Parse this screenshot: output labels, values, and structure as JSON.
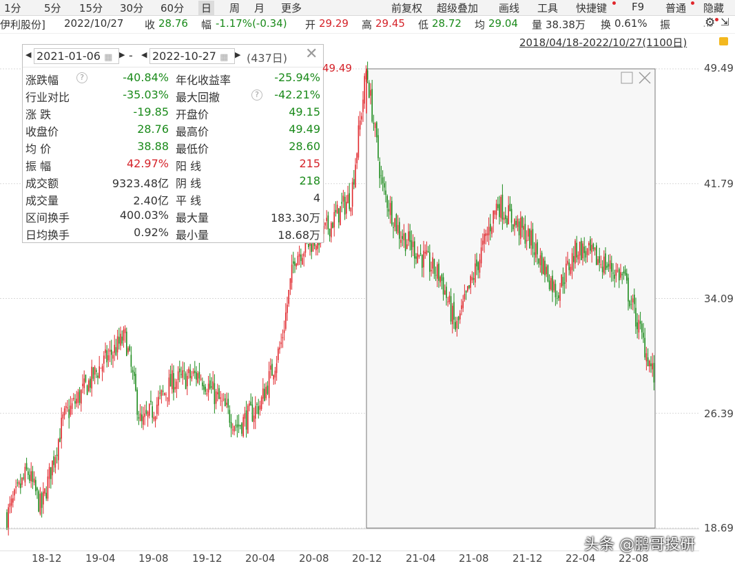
{
  "toolbar": {
    "periods": [
      "1分",
      "5分",
      "15分",
      "30分",
      "60分",
      "日",
      "周",
      "月",
      "更多"
    ],
    "active_period": "日",
    "tools": [
      "前复权",
      "超级叠加",
      "画线",
      "工具",
      "快捷键",
      "F9",
      "普通",
      "隐藏"
    ]
  },
  "quote": {
    "name": "伊利股份]",
    "date": "2022/10/27",
    "close_label": "收",
    "close": "28.76",
    "change_label": "幅",
    "change": "-1.17%(-0.34)",
    "open_label": "开",
    "open": "29.29",
    "high_label": "高",
    "high": "29.45",
    "low_label": "低",
    "low": "28.72",
    "avg_label": "均",
    "avg": "29.04",
    "vol_label": "量",
    "vol": "38.38万",
    "turnover_label": "换",
    "turnover": "0.61%",
    "amp_label": "振"
  },
  "range_link": "2018/04/18-2022/10/27(1100日)",
  "stats_panel": {
    "start_date": "2021-01-06",
    "end_date": "2022-10-27",
    "dash": "-",
    "days": "(437日)",
    "rows": [
      {
        "l1": "涨跌幅",
        "v1": "-40.84%",
        "c1": "g",
        "l2": "年化收益率",
        "v2": "-25.94%",
        "c2": "g"
      },
      {
        "l1": "行业对比",
        "v1": "-35.03%",
        "c1": "g",
        "l2": "最大回撤",
        "v2": "-42.21%",
        "c2": "g"
      },
      {
        "l1": "涨  跌",
        "v1": "-19.85",
        "c1": "g",
        "l2": "开盘价",
        "v2": "49.15",
        "c2": "g"
      },
      {
        "l1": "收盘价",
        "v1": "28.76",
        "c1": "g",
        "l2": "最高价",
        "v2": "49.49",
        "c2": "g"
      },
      {
        "l1": "均  价",
        "v1": "38.88",
        "c1": "g",
        "l2": "最低价",
        "v2": "28.60",
        "c2": "g"
      },
      {
        "l1": "振  幅",
        "v1": "42.97%",
        "c1": "r",
        "l2": "阳  线",
        "v2": "215",
        "c2": "r"
      },
      {
        "l1": "成交额",
        "v1": "9323.48亿",
        "c1": "k",
        "l2": "阴  线",
        "v2": "218",
        "c2": "g"
      },
      {
        "l1": "成交量",
        "v1": "2.40亿",
        "c1": "k",
        "l2": "平  线",
        "v2": "4",
        "c2": "k"
      },
      {
        "l1": "区间换手",
        "v1": "400.03%",
        "c1": "k",
        "l2": "最大量",
        "v2": "183.30万",
        "c2": "k"
      },
      {
        "l1": "日均换手",
        "v1": "0.92%",
        "c1": "k",
        "l2": "最小量",
        "v2": "18.68万",
        "c2": "k"
      }
    ]
  },
  "chart_data": {
    "type": "candlestick",
    "y_ticks": [
      "49.49",
      "41.79",
      "34.09",
      "26.39",
      "18.69"
    ],
    "ylim": [
      18.69,
      49.49
    ],
    "x_ticks": [
      "18-12",
      "19-04",
      "19-08",
      "19-12",
      "20-04",
      "20-08",
      "20-12",
      "21-04",
      "21-08",
      "21-12",
      "22-04",
      "22-08"
    ],
    "peak_label": "49.49",
    "series_close_key_points": [
      {
        "date": "2018-08",
        "close": 19.5
      },
      {
        "date": "2018-10",
        "close": 22.5
      },
      {
        "date": "2018-12",
        "close": 20.0
      },
      {
        "date": "2019-02",
        "close": 26.0
      },
      {
        "date": "2019-04",
        "close": 29.5
      },
      {
        "date": "2019-06",
        "close": 31.5
      },
      {
        "date": "2019-08",
        "close": 25.5
      },
      {
        "date": "2019-10",
        "close": 28.5
      },
      {
        "date": "2019-12",
        "close": 29.0
      },
      {
        "date": "2020-03",
        "close": 25.5
      },
      {
        "date": "2020-05",
        "close": 27.0
      },
      {
        "date": "2020-06",
        "close": 31.0
      },
      {
        "date": "2020-08",
        "close": 37.0
      },
      {
        "date": "2020-10",
        "close": 38.5
      },
      {
        "date": "2020-12",
        "close": 41.0
      },
      {
        "date": "2021-01",
        "close": 49.49
      },
      {
        "date": "2021-03",
        "close": 41.5
      },
      {
        "date": "2021-05",
        "close": 38.5
      },
      {
        "date": "2021-07",
        "close": 35.5
      },
      {
        "date": "2021-08",
        "close": 32.0
      },
      {
        "date": "2021-10",
        "close": 40.5
      },
      {
        "date": "2021-12",
        "close": 38.0
      },
      {
        "date": "2022-02",
        "close": 34.5
      },
      {
        "date": "2022-04",
        "close": 37.5
      },
      {
        "date": "2022-06",
        "close": 36.5
      },
      {
        "date": "2022-08",
        "close": 35.5
      },
      {
        "date": "2022-10",
        "close": 28.76
      }
    ],
    "grid": true,
    "colors": {
      "up": "#e0262b",
      "down": "#1a8a1a",
      "grid": "#d8d8d8",
      "selection": "#f7f7f7"
    }
  },
  "watermark": "头条 @鹏哥投研"
}
